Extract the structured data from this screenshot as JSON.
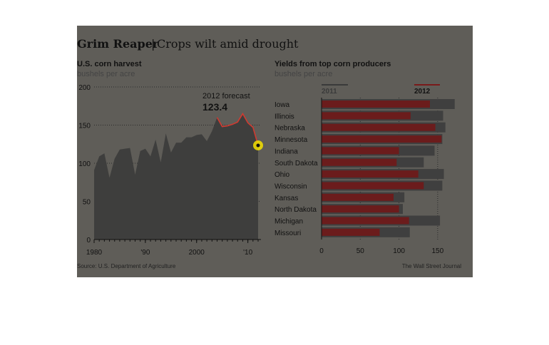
{
  "header": {
    "title": "Grim Reaper",
    "separator": "|",
    "subtitle": "Crops wilt amid drought"
  },
  "footer": {
    "source": "Source: U.S. Department of Agriculture",
    "credit": "The Wall Street Journal"
  },
  "colors": {
    "background": "#5f5d58",
    "area": "#3e3e3d",
    "line": "#d03a30",
    "bar_2011": "#3f3f3f",
    "bar_2012": "#6b1c1c",
    "highlight": "#f5e000"
  },
  "chart_data": [
    {
      "type": "area",
      "title": "U.S. corn harvest",
      "ylabel": "bushels per acre",
      "ylim": [
        0,
        200
      ],
      "yticks": [
        "200",
        "150",
        "100",
        "50",
        "0"
      ],
      "xticks": [
        "1980",
        "'90",
        "2000",
        "'10"
      ],
      "annotation": {
        "label": "2012 forecast",
        "value": "123.4"
      },
      "series": [
        {
          "x": [
            1980,
            1981,
            1982,
            1983,
            1984,
            1985,
            1986,
            1987,
            1988,
            1989,
            1990,
            1991,
            1992,
            1993,
            1994,
            1995,
            1996,
            1997,
            1998,
            1999,
            2000,
            2001,
            2002,
            2003,
            2004,
            2005,
            2006,
            2007,
            2008,
            2009,
            2010,
            2011
          ],
          "values": [
            91,
            109,
            113,
            81,
            106,
            118,
            119,
            120,
            85,
            116,
            119,
            109,
            131,
            101,
            139,
            114,
            127,
            127,
            134,
            134,
            137,
            138,
            129,
            142,
            160,
            148,
            149,
            151,
            154,
            165,
            153,
            147
          ]
        }
      ],
      "forecast": {
        "x": [
          2011,
          2012
        ],
        "values": [
          147,
          123.4
        ]
      },
      "grid": true
    },
    {
      "type": "bar",
      "title": "Yields from top corn producers",
      "ylabel": "bushels per acre",
      "xlim": [
        0,
        175
      ],
      "xticks": [
        "0",
        "50",
        "100",
        "150"
      ],
      "legend_position": "top",
      "categories": [
        "Iowa",
        "Illinois",
        "Nebraska",
        "Minnesota",
        "Indiana",
        "South Dakota",
        "Ohio",
        "Wisconsin",
        "Kansas",
        "North Dakota",
        "Michigan",
        "Missouri"
      ],
      "series": [
        {
          "name": "2011",
          "values": [
            172,
            157,
            160,
            156,
            146,
            132,
            158,
            156,
            107,
            105,
            153,
            114
          ]
        },
        {
          "name": "2012",
          "values": [
            140,
            115,
            147,
            155,
            100,
            97,
            125,
            132,
            93,
            100,
            113,
            75
          ]
        }
      ]
    }
  ]
}
